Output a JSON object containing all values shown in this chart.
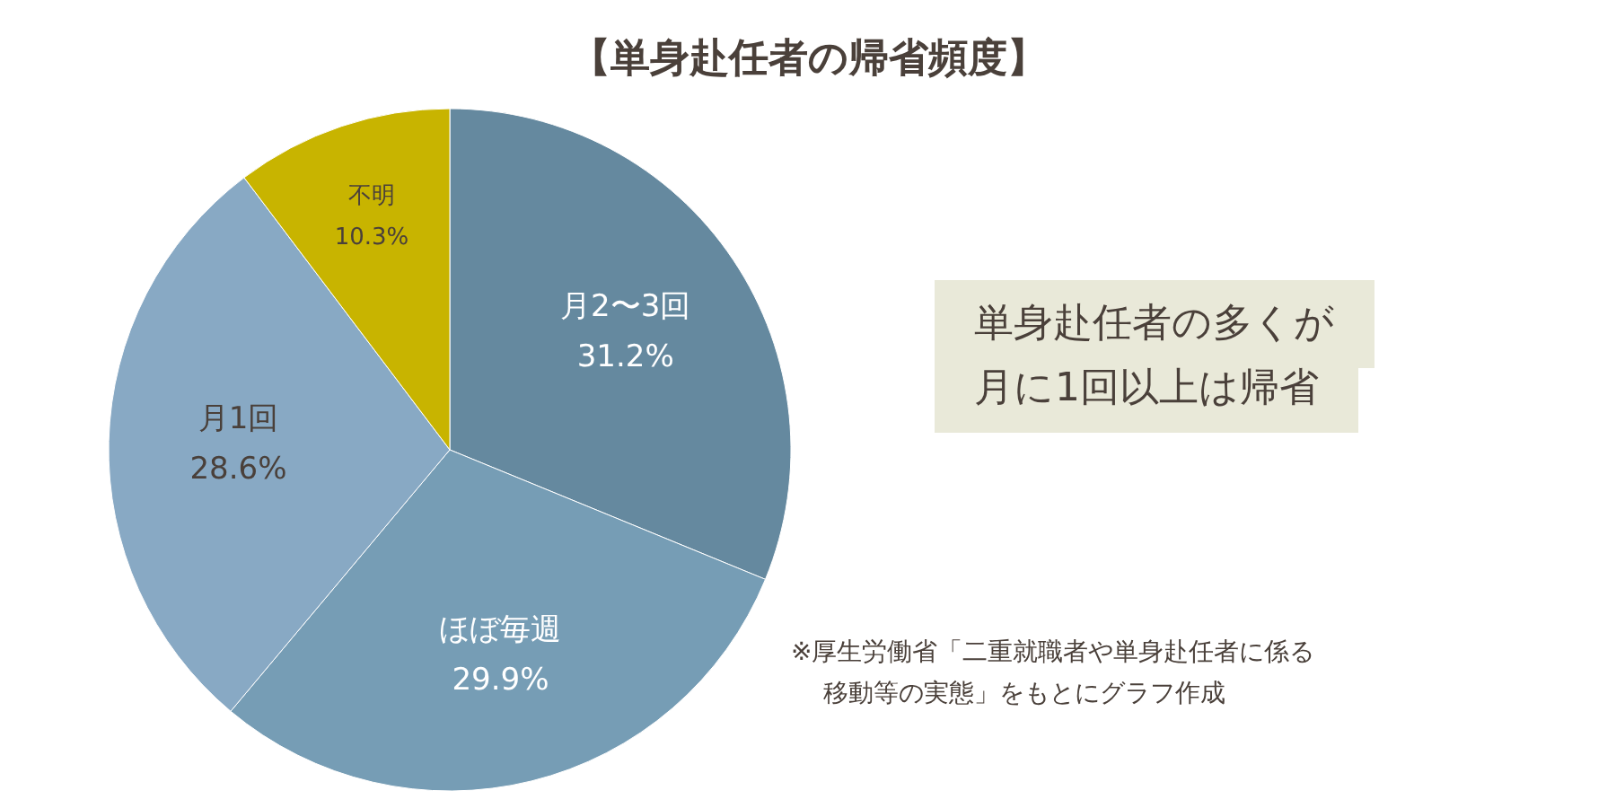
{
  "chart_data": {
    "type": "pie",
    "title": "【単身赴任者の帰省頻度】",
    "categories": [
      "月2〜3回",
      "ほぼ毎週",
      "月1回",
      "不明"
    ],
    "values": [
      31.2,
      29.9,
      28.6,
      10.3
    ],
    "value_labels": [
      "31.2%",
      "29.9%",
      "28.6%",
      "10.3%"
    ],
    "colors": [
      "#65899f",
      "#769db5",
      "#88a9c4",
      "#c8b400"
    ],
    "legend": false,
    "annotations": [
      "単身赴任者の多くが",
      "月に1回以上は帰省",
      "※厚生労働省「二重就職者や単身赴任者に係る",
      "移動等の実態」をもとにグラフ作成"
    ]
  }
}
